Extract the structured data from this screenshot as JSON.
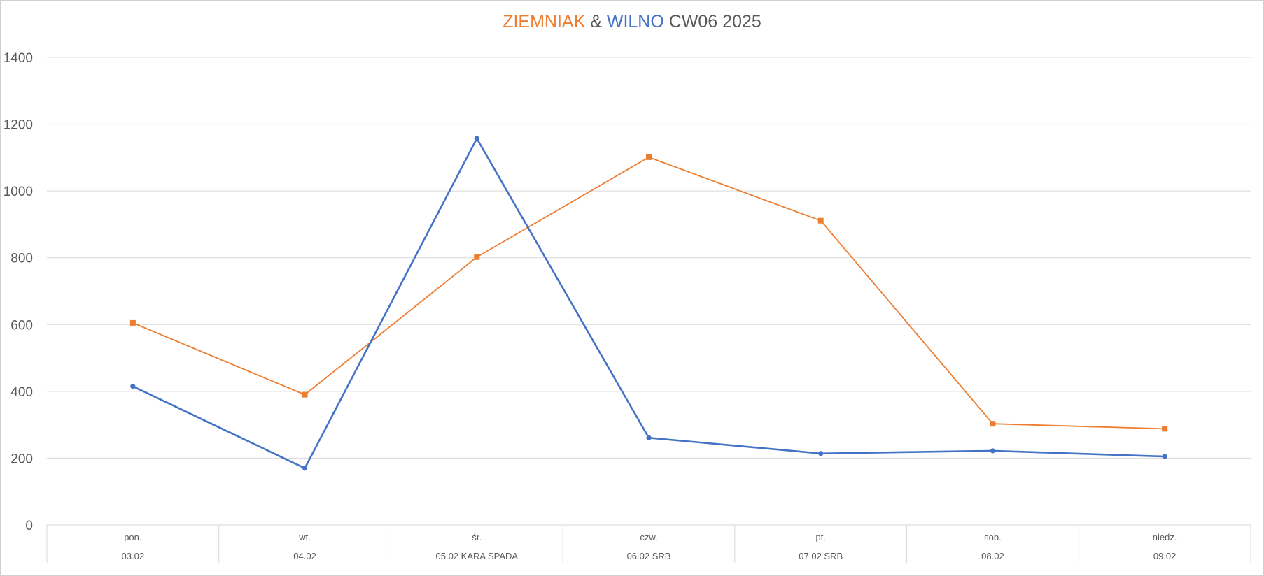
{
  "chart_data": {
    "type": "line",
    "title_parts": [
      {
        "text": "ZIEMNIAK",
        "color": "#ED7D31"
      },
      {
        "text": " & ",
        "color": "#595959"
      },
      {
        "text": "WILNO",
        "color": "#4472C4"
      },
      {
        "text": " CW06 2025",
        "color": "#595959"
      }
    ],
    "categories": [
      {
        "day": "pon.",
        "date": "03.02"
      },
      {
        "day": "wt.",
        "date": "04.02"
      },
      {
        "day": "śr.",
        "date": "05.02 KARA SPADA"
      },
      {
        "day": "czw.",
        "date": "06.02 SRB"
      },
      {
        "day": "pt.",
        "date": "07.02 SRB"
      },
      {
        "day": "sob.",
        "date": "08.02"
      },
      {
        "day": "niedz.",
        "date": "09.02"
      }
    ],
    "series": [
      {
        "key": "ziemniak",
        "color": "#ED7D31",
        "marker": "square",
        "values": [
          605,
          390,
          802,
          1101,
          911,
          303,
          288
        ]
      },
      {
        "key": "wilno",
        "color": "#4472C4",
        "marker": "circle",
        "values": [
          415,
          170,
          1157,
          261,
          214,
          222,
          205
        ]
      }
    ],
    "ylim": [
      0,
      1400
    ],
    "yticks": [
      "0",
      "200",
      "400",
      "600",
      "800",
      "1000",
      "1200",
      "1400"
    ],
    "grid": true,
    "legend": "none"
  }
}
